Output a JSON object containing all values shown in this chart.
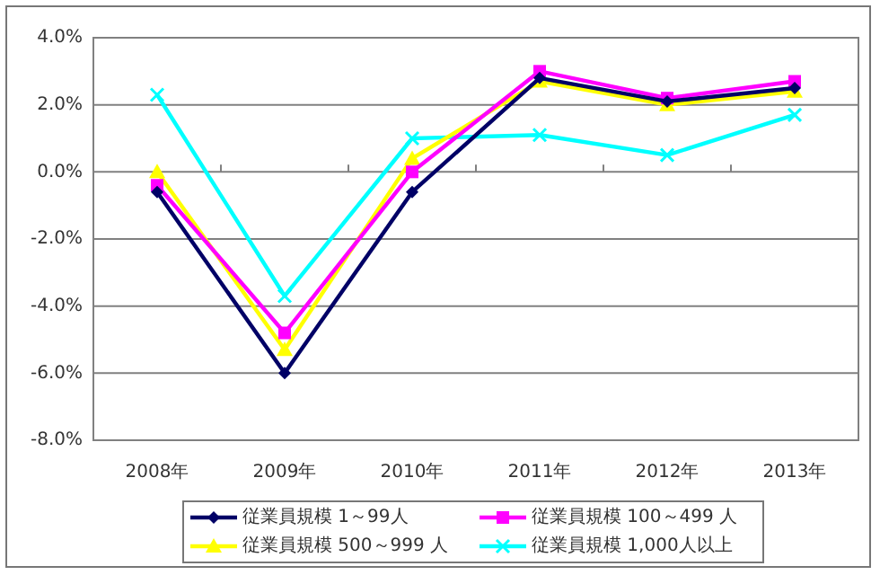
{
  "chart_data": {
    "type": "line",
    "categories": [
      "2008年",
      "2009年",
      "2010年",
      "2011年",
      "2012年",
      "2013年"
    ],
    "series": [
      {
        "name": "従業員規模 1～99人",
        "color": "#000066",
        "marker": "diamond",
        "values": [
          -0.6,
          -6.0,
          -0.6,
          2.8,
          2.1,
          2.5
        ]
      },
      {
        "name": "従業員規模 100～499 人",
        "color": "#ff00ff",
        "marker": "square",
        "values": [
          -0.4,
          -4.8,
          0.0,
          3.0,
          2.2,
          2.7
        ]
      },
      {
        "name": "従業員規模 500～999 人",
        "color": "#ffff00",
        "marker": "triangle",
        "values": [
          0.0,
          -5.3,
          0.4,
          2.7,
          2.0,
          2.4
        ]
      },
      {
        "name": "従業員規模 1,000人以上",
        "color": "#00ffff",
        "marker": "cross",
        "values": [
          2.3,
          -3.7,
          1.0,
          1.1,
          0.5,
          1.7
        ]
      }
    ],
    "ylim": [
      -8.0,
      4.0
    ],
    "yticks": [
      {
        "value": -8.0,
        "label": "-8.0%"
      },
      {
        "value": -6.0,
        "label": "-6.0%"
      },
      {
        "value": -4.0,
        "label": "-4.0%"
      },
      {
        "value": -2.0,
        "label": "-2.0%"
      },
      {
        "value": 0.0,
        "label": "0.0%"
      },
      {
        "value": 2.0,
        "label": "2.0%"
      },
      {
        "value": 4.0,
        "label": "4.0%"
      }
    ],
    "grid": "y",
    "legend": "bottom",
    "line_style": "solid"
  }
}
